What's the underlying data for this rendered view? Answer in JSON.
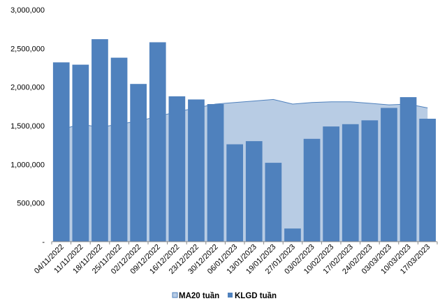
{
  "chart_data": {
    "type": "bar",
    "title": "",
    "xlabel": "",
    "ylabel": "",
    "ylim": [
      0,
      3000000
    ],
    "yticks": [
      0,
      500000,
      1000000,
      1500000,
      2000000,
      2500000,
      3000000
    ],
    "ytick_labels": [
      "-",
      "500,000",
      "1,000,000",
      "1,500,000",
      "2,000,000",
      "2,500,000",
      "3,000,000"
    ],
    "grid": false,
    "legend_position": "bottom",
    "categories": [
      "04/11/2022",
      "11/11/2022",
      "18/11/2022",
      "25/11/2022",
      "02/12/2022",
      "09/12/2022",
      "16/12/2022",
      "23/12/2022",
      "30/12/2022",
      "06/01/2023",
      "13/01/2023",
      "19/01/2023",
      "27/01/2023",
      "03/02/2023",
      "10/02/2023",
      "17/02/2023",
      "24/02/2023",
      "03/03/2023",
      "10/03/2023",
      "17/03/2023"
    ],
    "series": [
      {
        "name": "MA20 tuần",
        "type": "area",
        "color": "#b8cce4",
        "line_color": "#4f81bd",
        "values": [
          1450000,
          1520000,
          1480000,
          1520000,
          1560000,
          1620000,
          1680000,
          1730000,
          1780000,
          1800000,
          1820000,
          1840000,
          1780000,
          1800000,
          1810000,
          1810000,
          1790000,
          1770000,
          1780000,
          1730000
        ]
      },
      {
        "name": "KLGD tuần",
        "type": "bar",
        "color": "#4f81bd",
        "values": [
          2320000,
          2290000,
          2620000,
          2380000,
          2040000,
          2580000,
          1880000,
          1840000,
          1780000,
          1260000,
          1300000,
          1020000,
          170000,
          1330000,
          1490000,
          1520000,
          1570000,
          1730000,
          1870000,
          1590000
        ]
      }
    ]
  }
}
